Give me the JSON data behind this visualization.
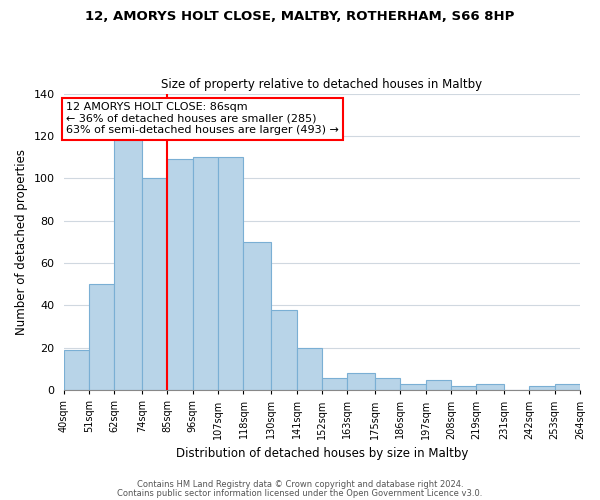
{
  "title": "12, AMORYS HOLT CLOSE, MALTBY, ROTHERHAM, S66 8HP",
  "subtitle": "Size of property relative to detached houses in Maltby",
  "xlabel": "Distribution of detached houses by size in Maltby",
  "ylabel": "Number of detached properties",
  "bar_edges": [
    40,
    51,
    62,
    74,
    85,
    96,
    107,
    118,
    130,
    141,
    152,
    163,
    175,
    186,
    197,
    208,
    219,
    231,
    242,
    253,
    264
  ],
  "bar_heights": [
    19,
    50,
    118,
    100,
    109,
    110,
    110,
    70,
    38,
    20,
    6,
    8,
    6,
    3,
    5,
    2,
    3,
    0,
    2,
    3
  ],
  "bar_color": "#b8d4e8",
  "bar_edge_color": "#7aafd4",
  "property_line_x": 85,
  "property_line_color": "red",
  "annotation_text": "12 AMORYS HOLT CLOSE: 86sqm\n← 36% of detached houses are smaller (285)\n63% of semi-detached houses are larger (493) →",
  "annotation_box_edge_color": "red",
  "annotation_box_face_color": "white",
  "tick_labels": [
    "40sqm",
    "51sqm",
    "62sqm",
    "74sqm",
    "85sqm",
    "96sqm",
    "107sqm",
    "118sqm",
    "130sqm",
    "141sqm",
    "152sqm",
    "163sqm",
    "175sqm",
    "186sqm",
    "197sqm",
    "208sqm",
    "219sqm",
    "231sqm",
    "242sqm",
    "253sqm",
    "264sqm"
  ],
  "ylim": [
    0,
    140
  ],
  "yticks": [
    0,
    20,
    40,
    60,
    80,
    100,
    120,
    140
  ],
  "footer_line1": "Contains HM Land Registry data © Crown copyright and database right 2024.",
  "footer_line2": "Contains public sector information licensed under the Open Government Licence v3.0.",
  "grid_color": "#d0d8e0",
  "figsize": [
    6.0,
    5.0
  ],
  "dpi": 100
}
